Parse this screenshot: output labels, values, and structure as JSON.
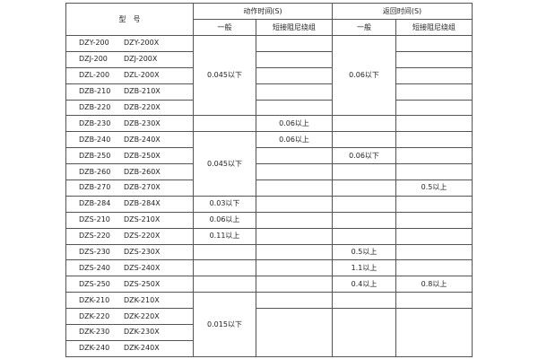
{
  "header": {
    "model": "型　号",
    "action_time": "动作时间(S)",
    "return_time": "返回时间(S)",
    "general": "一般",
    "short_damping": "短接阻尼绕组"
  },
  "rows": [
    {
      "models": [
        "DZY-200",
        "DZY-200X"
      ],
      "action_general": "0.045以下",
      "action_short": "",
      "return_general": "0.06以下",
      "return_short": ""
    },
    {
      "models": [
        "DZJ-200",
        "DZJ-200X"
      ],
      "action_general": "",
      "action_short": "",
      "return_general": "",
      "return_short": ""
    },
    {
      "models": [
        "DZL-200",
        "DZL-200X"
      ],
      "action_general": "",
      "action_short": "",
      "return_general": "",
      "return_short": ""
    },
    {
      "models": [
        "DZB-210",
        "DZB-210X"
      ],
      "action_general": "",
      "action_short": "",
      "return_general": "",
      "return_short": ""
    },
    {
      "models": [
        "DZB-220",
        "DZB-220X"
      ],
      "action_general": "",
      "action_short": "",
      "return_general": "",
      "return_short": ""
    },
    {
      "models": [
        "DZB-230",
        "DZB-230X"
      ],
      "action_general": "",
      "action_short": "0.06以上",
      "return_general": "",
      "return_short": ""
    },
    {
      "models": [
        "DZB-240",
        "DZB-240X"
      ],
      "action_general": "0.045以下",
      "action_short": "0.06以上",
      "return_general": "",
      "return_short": ""
    },
    {
      "models": [
        "DZB-250",
        "DZB-250X"
      ],
      "action_general": "",
      "action_short": "",
      "return_general": "0.06以下",
      "return_short": ""
    },
    {
      "models": [
        "DZB-260",
        "DZB-260X"
      ],
      "action_general": "",
      "action_short": "",
      "return_general": "",
      "return_short": ""
    },
    {
      "models": [
        "DZB-270",
        "DZB-270X"
      ],
      "action_general": "",
      "action_short": "",
      "return_general": "",
      "return_short": "0.5以上"
    },
    {
      "models": [
        "DZB-284",
        "DZB-284X"
      ],
      "action_general": "0.03以下",
      "action_short": "",
      "return_general": "",
      "return_short": ""
    },
    {
      "models": [
        "DZS-210",
        "DZS-210X"
      ],
      "action_general": "0.06以上",
      "action_short": "",
      "return_general": "",
      "return_short": ""
    },
    {
      "models": [
        "DZS-220",
        "DZS-220X"
      ],
      "action_general": "0.11以上",
      "action_short": "",
      "return_general": "",
      "return_short": ""
    },
    {
      "models": [
        "DZS-230",
        "DZS-230X"
      ],
      "action_general": "",
      "action_short": "",
      "return_general": "0.5以上",
      "return_short": ""
    },
    {
      "models": [
        "DZS-240",
        "DZS-240X"
      ],
      "action_general": "",
      "action_short": "",
      "return_general": "1.1以上",
      "return_short": ""
    },
    {
      "models": [
        "DZS-250",
        "DZS-250X"
      ],
      "action_general": "",
      "action_short": "",
      "return_general": "0.4以上",
      "return_short": "0.8以上"
    },
    {
      "models": [
        "DZK-210",
        "DZK-210X"
      ],
      "action_general": "0.015以下",
      "action_short": "",
      "return_general": "",
      "return_short": ""
    },
    {
      "models": [
        "DZK-220",
        "DZK-220X"
      ],
      "action_general": "",
      "action_short": "",
      "return_general": "",
      "return_short": ""
    },
    {
      "models": [
        "DZK-230",
        "DZK-230X"
      ],
      "action_general": "",
      "action_short": "",
      "return_general": "",
      "return_short": ""
    },
    {
      "models": [
        "DZK-240",
        "DZK-240X"
      ],
      "action_general": "",
      "action_short": "",
      "return_general": "",
      "return_short": ""
    }
  ]
}
